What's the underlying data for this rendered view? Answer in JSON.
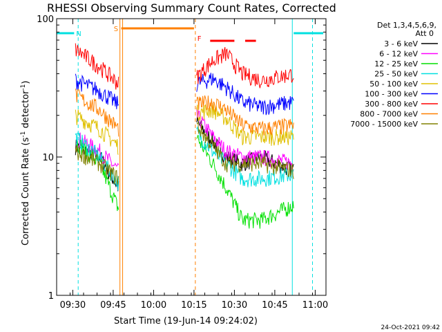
{
  "chart_data": {
    "type": "line",
    "title": "RHESSI Observing Summary Count Rates, Corrected",
    "xlabel": "Start Time (19-Jun-14 09:24:02)",
    "ylabel": "Corrected Count Rate (s",
    "ylabel_sup1": "-1",
    "ylabel_mid": " detector",
    "ylabel_sup2": "-1",
    "ylabel_end": ")",
    "y_scale": "log",
    "ylim": [
      1,
      100
    ],
    "xlim": [
      "09:24",
      "11:04"
    ],
    "x_ticks": [
      "09:30",
      "09:45",
      "10:00",
      "10:15",
      "10:30",
      "10:45",
      "11:00"
    ],
    "y_ticks": [
      "1",
      "10",
      "100"
    ],
    "legend_title": [
      "Det 1,3,4,5,6,9,",
      "Att 0"
    ],
    "legend_position": "right",
    "date_stamp": "24-Oct-2021 09:42",
    "flags": [
      {
        "label": "N",
        "color": "#00e0e0",
        "segments": [
          [
            "09:24",
            "09:30:30"
          ],
          [
            "10:52",
            "11:03"
          ]
        ],
        "label_at": "09:32"
      },
      {
        "label": "S",
        "color": "#ff8000",
        "segments": [
          [
            "09:48",
            "10:15"
          ]
        ],
        "label_at": "09:46"
      },
      {
        "label": "F",
        "color": "#ff0000",
        "segments": [
          [
            "10:21",
            "10:30"
          ],
          [
            "10:34",
            "10:38"
          ]
        ],
        "label_at": "10:17"
      }
    ],
    "vlines": [
      {
        "t": "09:32",
        "color": "#00e0e0",
        "style": "dashed"
      },
      {
        "t": "09:47:30",
        "color": "#ff8000",
        "style": "solid"
      },
      {
        "t": "09:48:30",
        "color": "#ff8000",
        "style": "solid"
      },
      {
        "t": "10:15:30",
        "color": "#ff8000",
        "style": "dashed"
      },
      {
        "t": "10:51:30",
        "color": "#00e0e0",
        "style": "solid"
      },
      {
        "t": "10:59",
        "color": "#00e0e0",
        "style": "dashed"
      }
    ],
    "x": [
      "09:31",
      "09:40",
      "09:47",
      "10:16",
      "10:22",
      "10:27",
      "10:33",
      "10:40",
      "10:52"
    ],
    "series": [
      {
        "name": "3 - 6 keV",
        "color": "#000000",
        "values": [
          12,
          10,
          6,
          18,
          13,
          10,
          9,
          10,
          8
        ]
      },
      {
        "name": "6 - 12 keV",
        "color": "#ff00ff",
        "values": [
          14,
          11,
          8,
          20,
          14,
          11,
          10,
          10,
          9
        ]
      },
      {
        "name": "12 - 25 keV",
        "color": "#00e000",
        "values": [
          13,
          9,
          4.2,
          14,
          9,
          6,
          3.5,
          3.5,
          4.5
        ]
      },
      {
        "name": "25 - 50 keV",
        "color": "#00e0e0",
        "values": [
          14,
          10,
          6.5,
          15,
          11,
          9,
          7,
          7,
          7.5
        ]
      },
      {
        "name": "50 - 100 keV",
        "color": "#e0c000",
        "values": [
          20,
          16,
          12,
          21,
          22,
          19,
          14,
          14,
          14
        ]
      },
      {
        "name": "100 - 300 keV",
        "color": "#0000ff",
        "values": [
          36,
          30,
          24,
          34,
          37,
          32,
          25,
          23,
          25
        ]
      },
      {
        "name": "300 - 800 keV",
        "color": "#ff0000",
        "values": [
          60,
          45,
          34,
          38,
          50,
          56,
          40,
          36,
          40
        ]
      },
      {
        "name": "800 - 7000 keV",
        "color": "#ff8000",
        "values": [
          28,
          22,
          16,
          24,
          25,
          22,
          17,
          16,
          17
        ]
      },
      {
        "name": "7000 - 15000 keV",
        "color": "#808000",
        "values": [
          11,
          9,
          7,
          17,
          12,
          9,
          9,
          9,
          8
        ]
      }
    ]
  }
}
